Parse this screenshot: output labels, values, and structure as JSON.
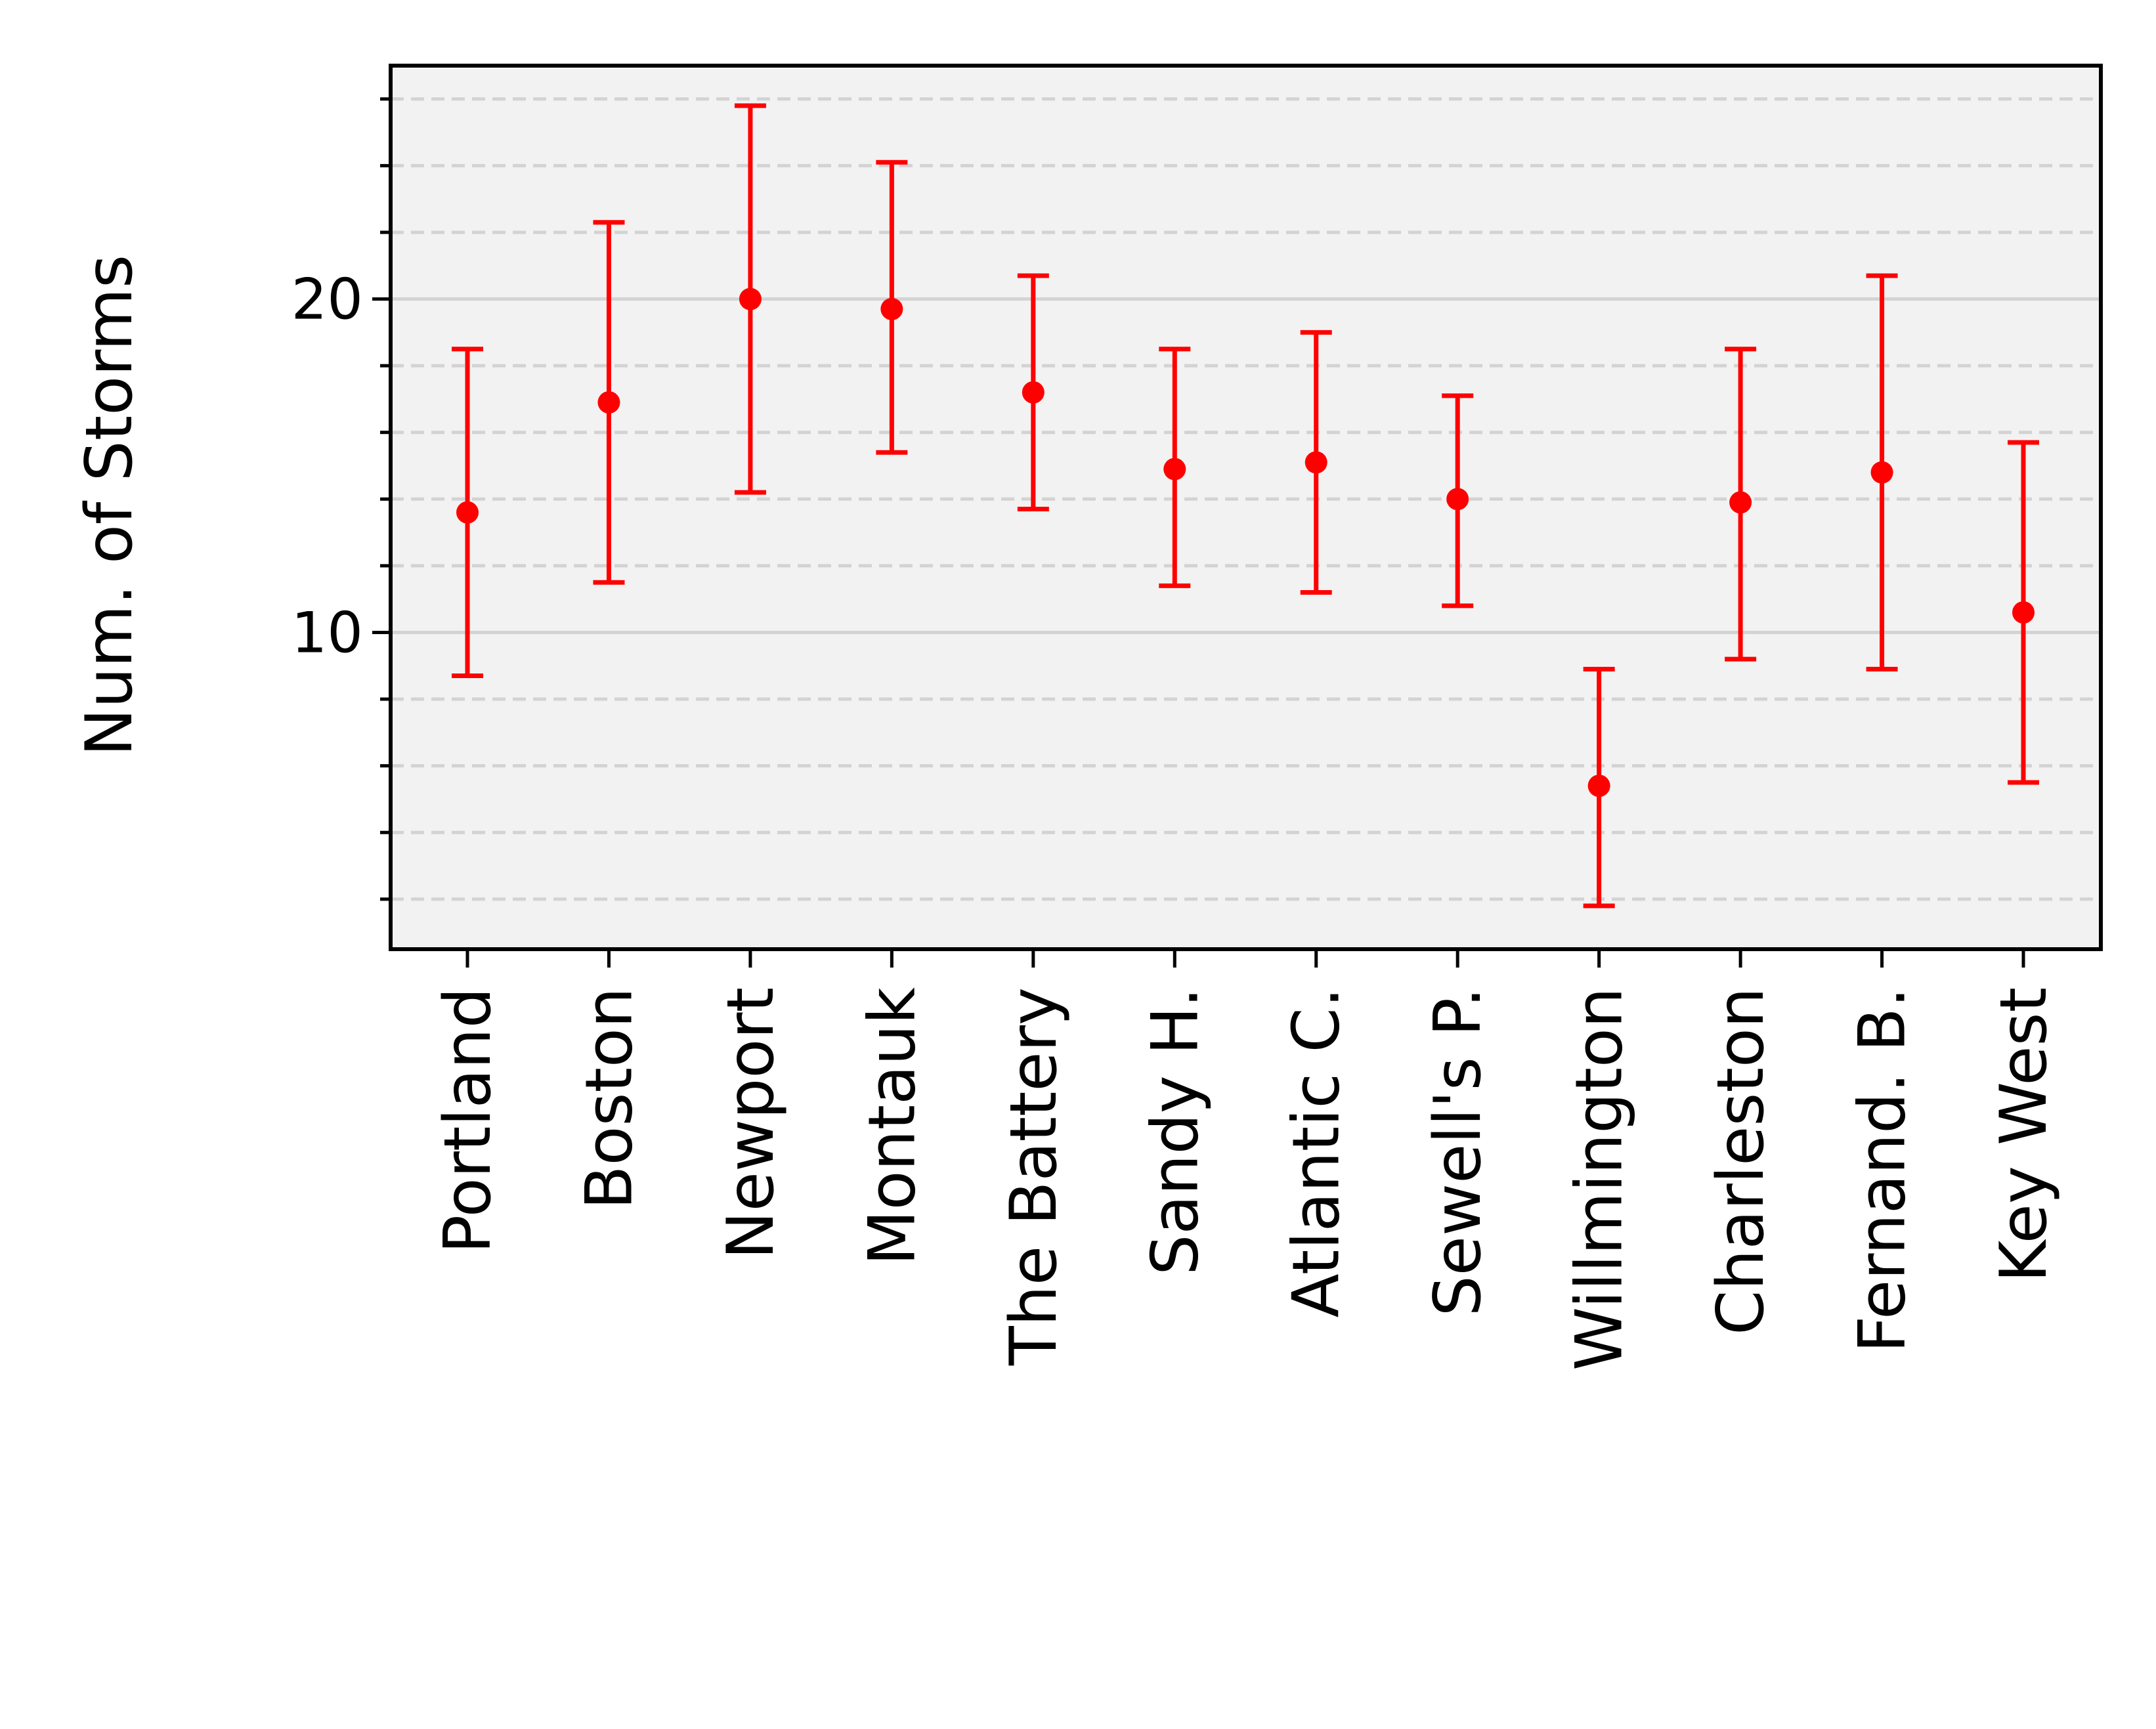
{
  "chart_data": {
    "type": "errorbar",
    "ylabel": "Num. of Storms",
    "xlabel": "",
    "categories": [
      "Portland",
      "Boston",
      "Newport",
      "Montauk",
      "The Battery",
      "Sandy H.",
      "Atlantic C.",
      "Sewell's P.",
      "Willmington",
      "Charleston",
      "Fernand. B.",
      "Key West"
    ],
    "values": [
      13.6,
      16.9,
      20.0,
      19.7,
      17.2,
      14.9,
      15.1,
      14.0,
      5.4,
      13.9,
      14.8,
      10.6
    ],
    "lower": [
      8.7,
      11.5,
      14.2,
      15.4,
      13.7,
      11.4,
      11.2,
      10.8,
      1.8,
      9.2,
      8.9,
      5.5
    ],
    "upper": [
      18.5,
      22.3,
      25.8,
      24.1,
      20.7,
      18.5,
      19.0,
      17.1,
      8.9,
      18.5,
      20.7,
      15.7
    ],
    "ylim": [
      0.5,
      27.0
    ],
    "yticks_major": [
      10,
      20
    ],
    "yticks_minor": [
      2,
      4,
      6,
      8,
      12,
      14,
      16,
      18,
      22,
      24,
      26
    ],
    "grid": true,
    "series_color": "#ff0000"
  }
}
